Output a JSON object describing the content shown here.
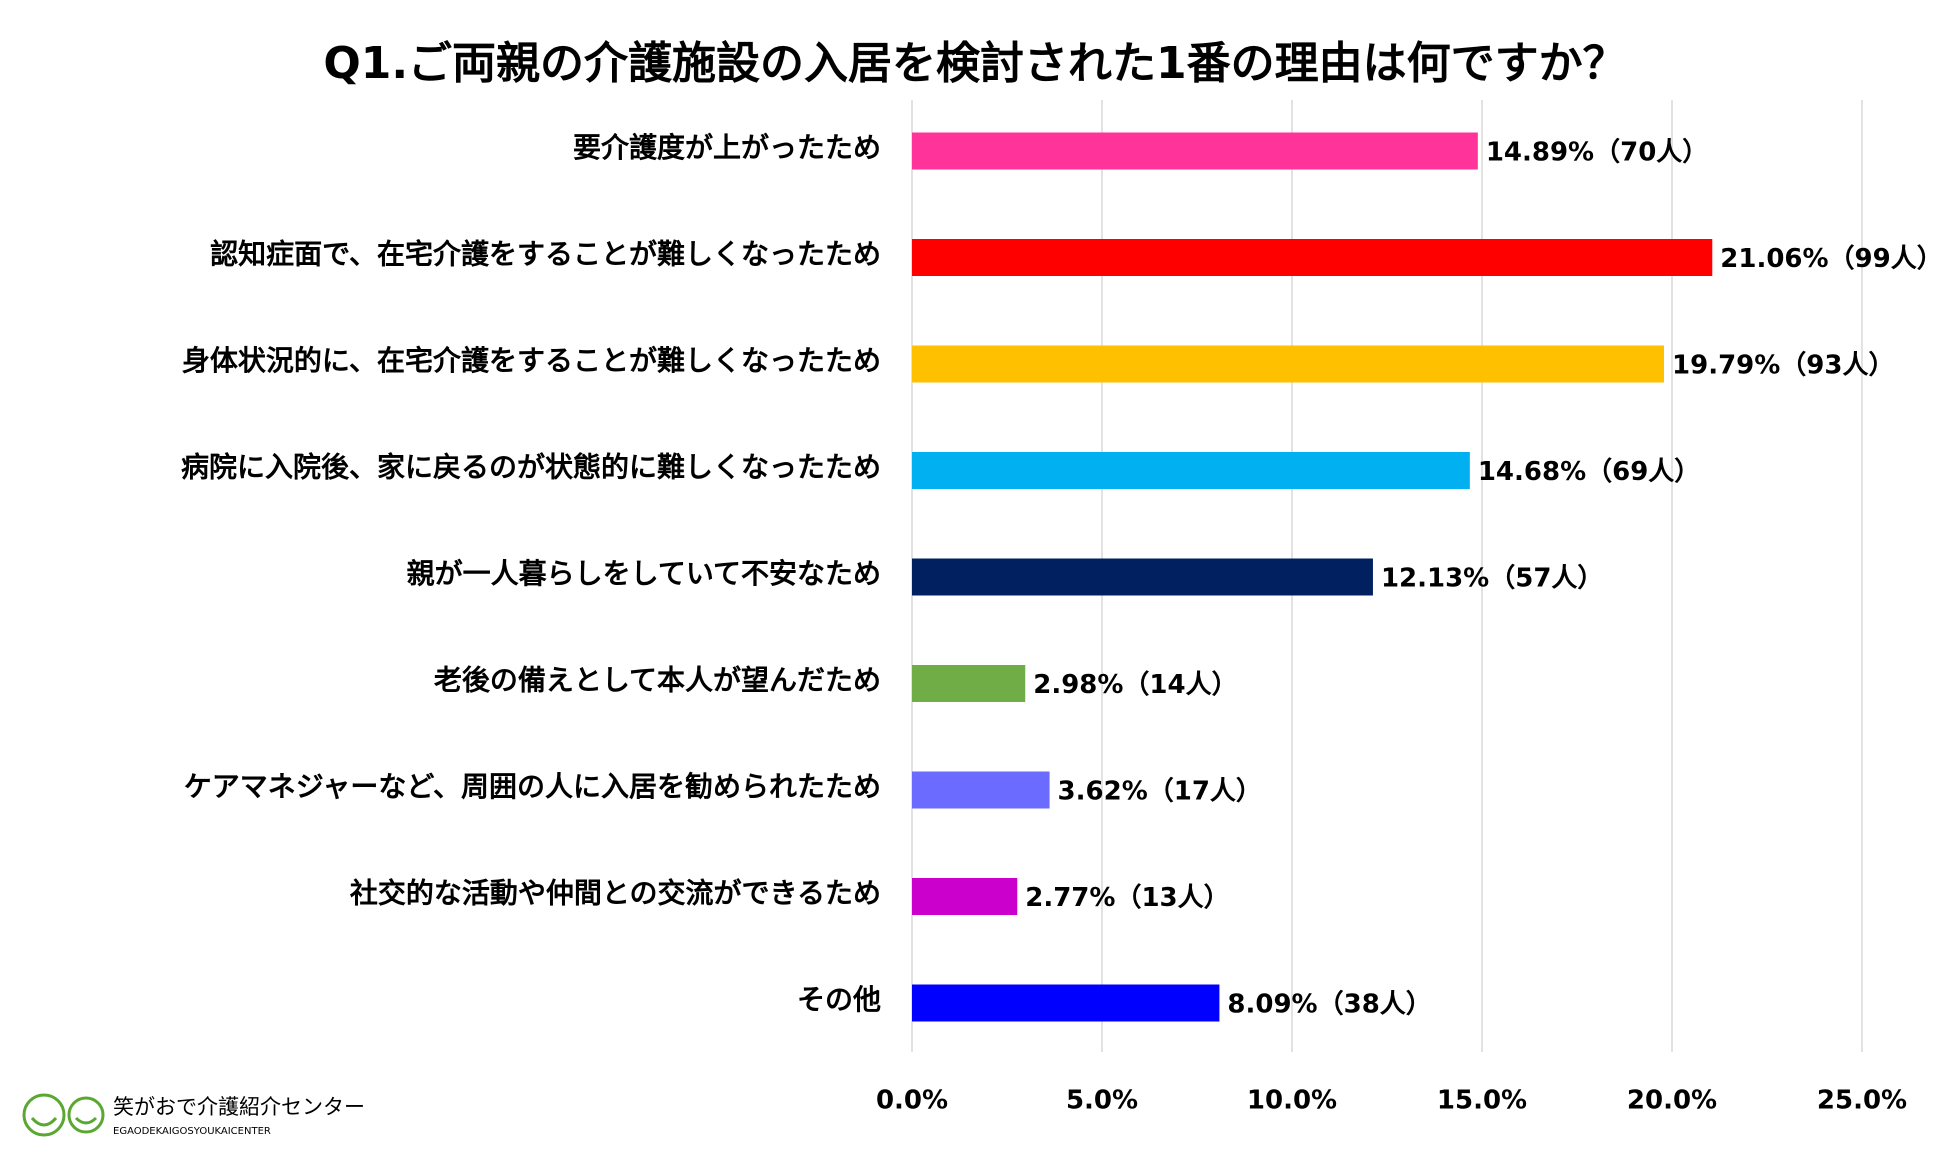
{
  "chart_data": {
    "type": "bar",
    "orientation": "horizontal",
    "title": "Q1.ご両親の介護施設の入居を検討された1番の理由は何ですか？",
    "categories": [
      "要介護度が上がったため",
      "認知症面で、在宅介護をすることが難しくなったため",
      "身体状況的に、在宅介護をすることが難しくなったため",
      "病院に入院後、家に戻るのが状態的に難しくなったため",
      "親が一人暮らしをしていて不安なため",
      "老後の備えとして本人が望んだため",
      "ケアマネジャーなど、周囲の人に入居を勧められたため",
      "社交的な活動や仲間との交流ができるため",
      "その他"
    ],
    "values": [
      14.89,
      21.06,
      19.79,
      14.68,
      12.13,
      2.98,
      3.62,
      2.77,
      8.09
    ],
    "value_labels": [
      "14.89%（70人）",
      "21.06%（99人）",
      "19.79%（93人）",
      "14.68%（69人）",
      "12.13%（57人）",
      "2.98%（14人）",
      "3.62%（17人）",
      "2.77%（13人）",
      "8.09%（38人）"
    ],
    "colors": [
      "#ff3399",
      "#ff0000",
      "#ffc000",
      "#00b0f0",
      "#002060",
      "#70ad47",
      "#6b6bff",
      "#cc00cc",
      "#0000ff"
    ],
    "xlim": [
      0,
      25
    ],
    "xticks": [
      {
        "value": 0,
        "label": "0.0%"
      },
      {
        "value": 5,
        "label": "5.0%"
      },
      {
        "value": 10,
        "label": "10.0%"
      },
      {
        "value": 15,
        "label": "15.0%"
      },
      {
        "value": 20,
        "label": "20.0%"
      },
      {
        "value": 25,
        "label": "25.0%"
      }
    ],
    "grid": true
  },
  "logo": {
    "name": "笑がおで介護紹介センター",
    "subtitle": "EGAODEKAIGOSYOUKAICENTER"
  }
}
